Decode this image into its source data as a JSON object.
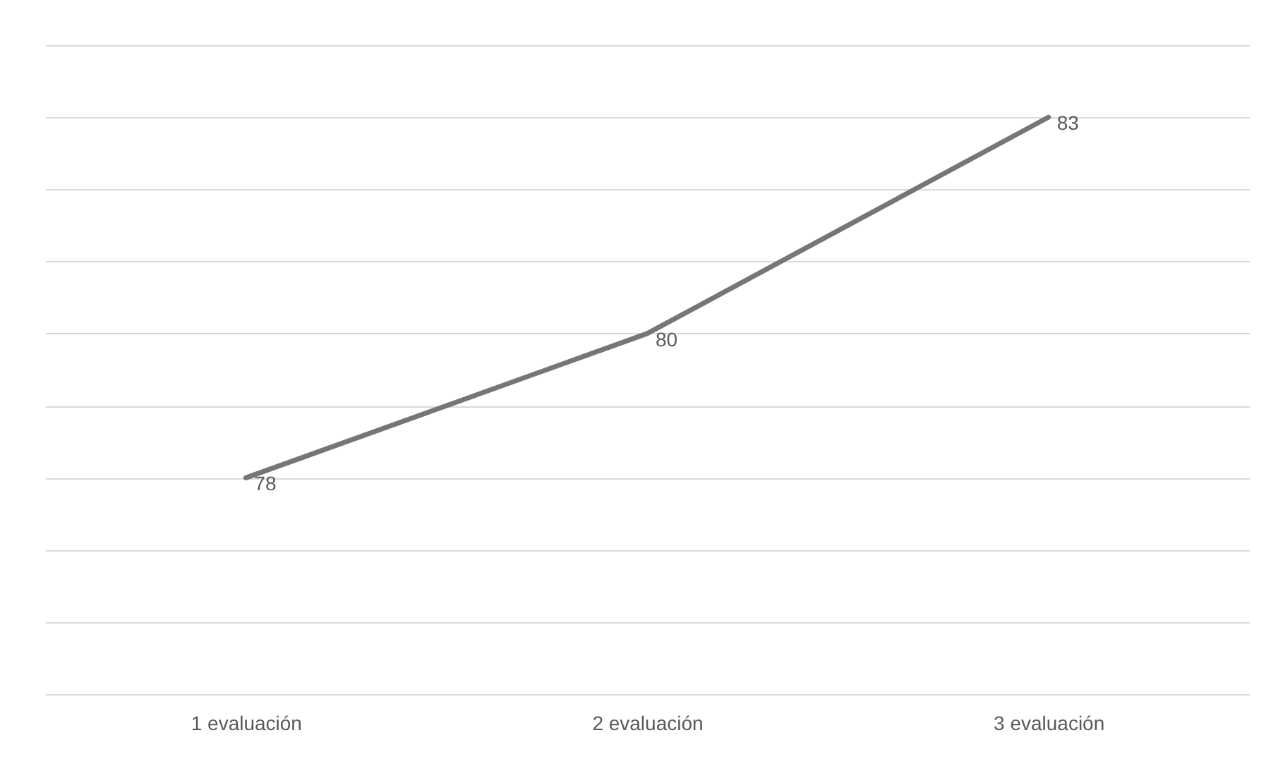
{
  "chart_data": {
    "type": "line",
    "categories": [
      "1 evaluación",
      "2 evaluación",
      "3 evaluación"
    ],
    "values": [
      78,
      80,
      83
    ],
    "color": "#767676",
    "ylim": [
      75,
      84
    ],
    "yticks": [
      {
        "value": 75,
        "label": null
      },
      {
        "value": 76,
        "label": null
      },
      {
        "value": 77,
        "label": null
      },
      {
        "value": 78,
        "label": null
      },
      {
        "value": 79,
        "label": null
      },
      {
        "value": 80,
        "label": null
      },
      {
        "value": 81,
        "label": null
      },
      {
        "value": 82,
        "label": null
      },
      {
        "value": 83,
        "label": null
      },
      {
        "value": 84,
        "label": null
      }
    ],
    "grid": "y",
    "tick_labels": "x",
    "data_labels": true
  }
}
